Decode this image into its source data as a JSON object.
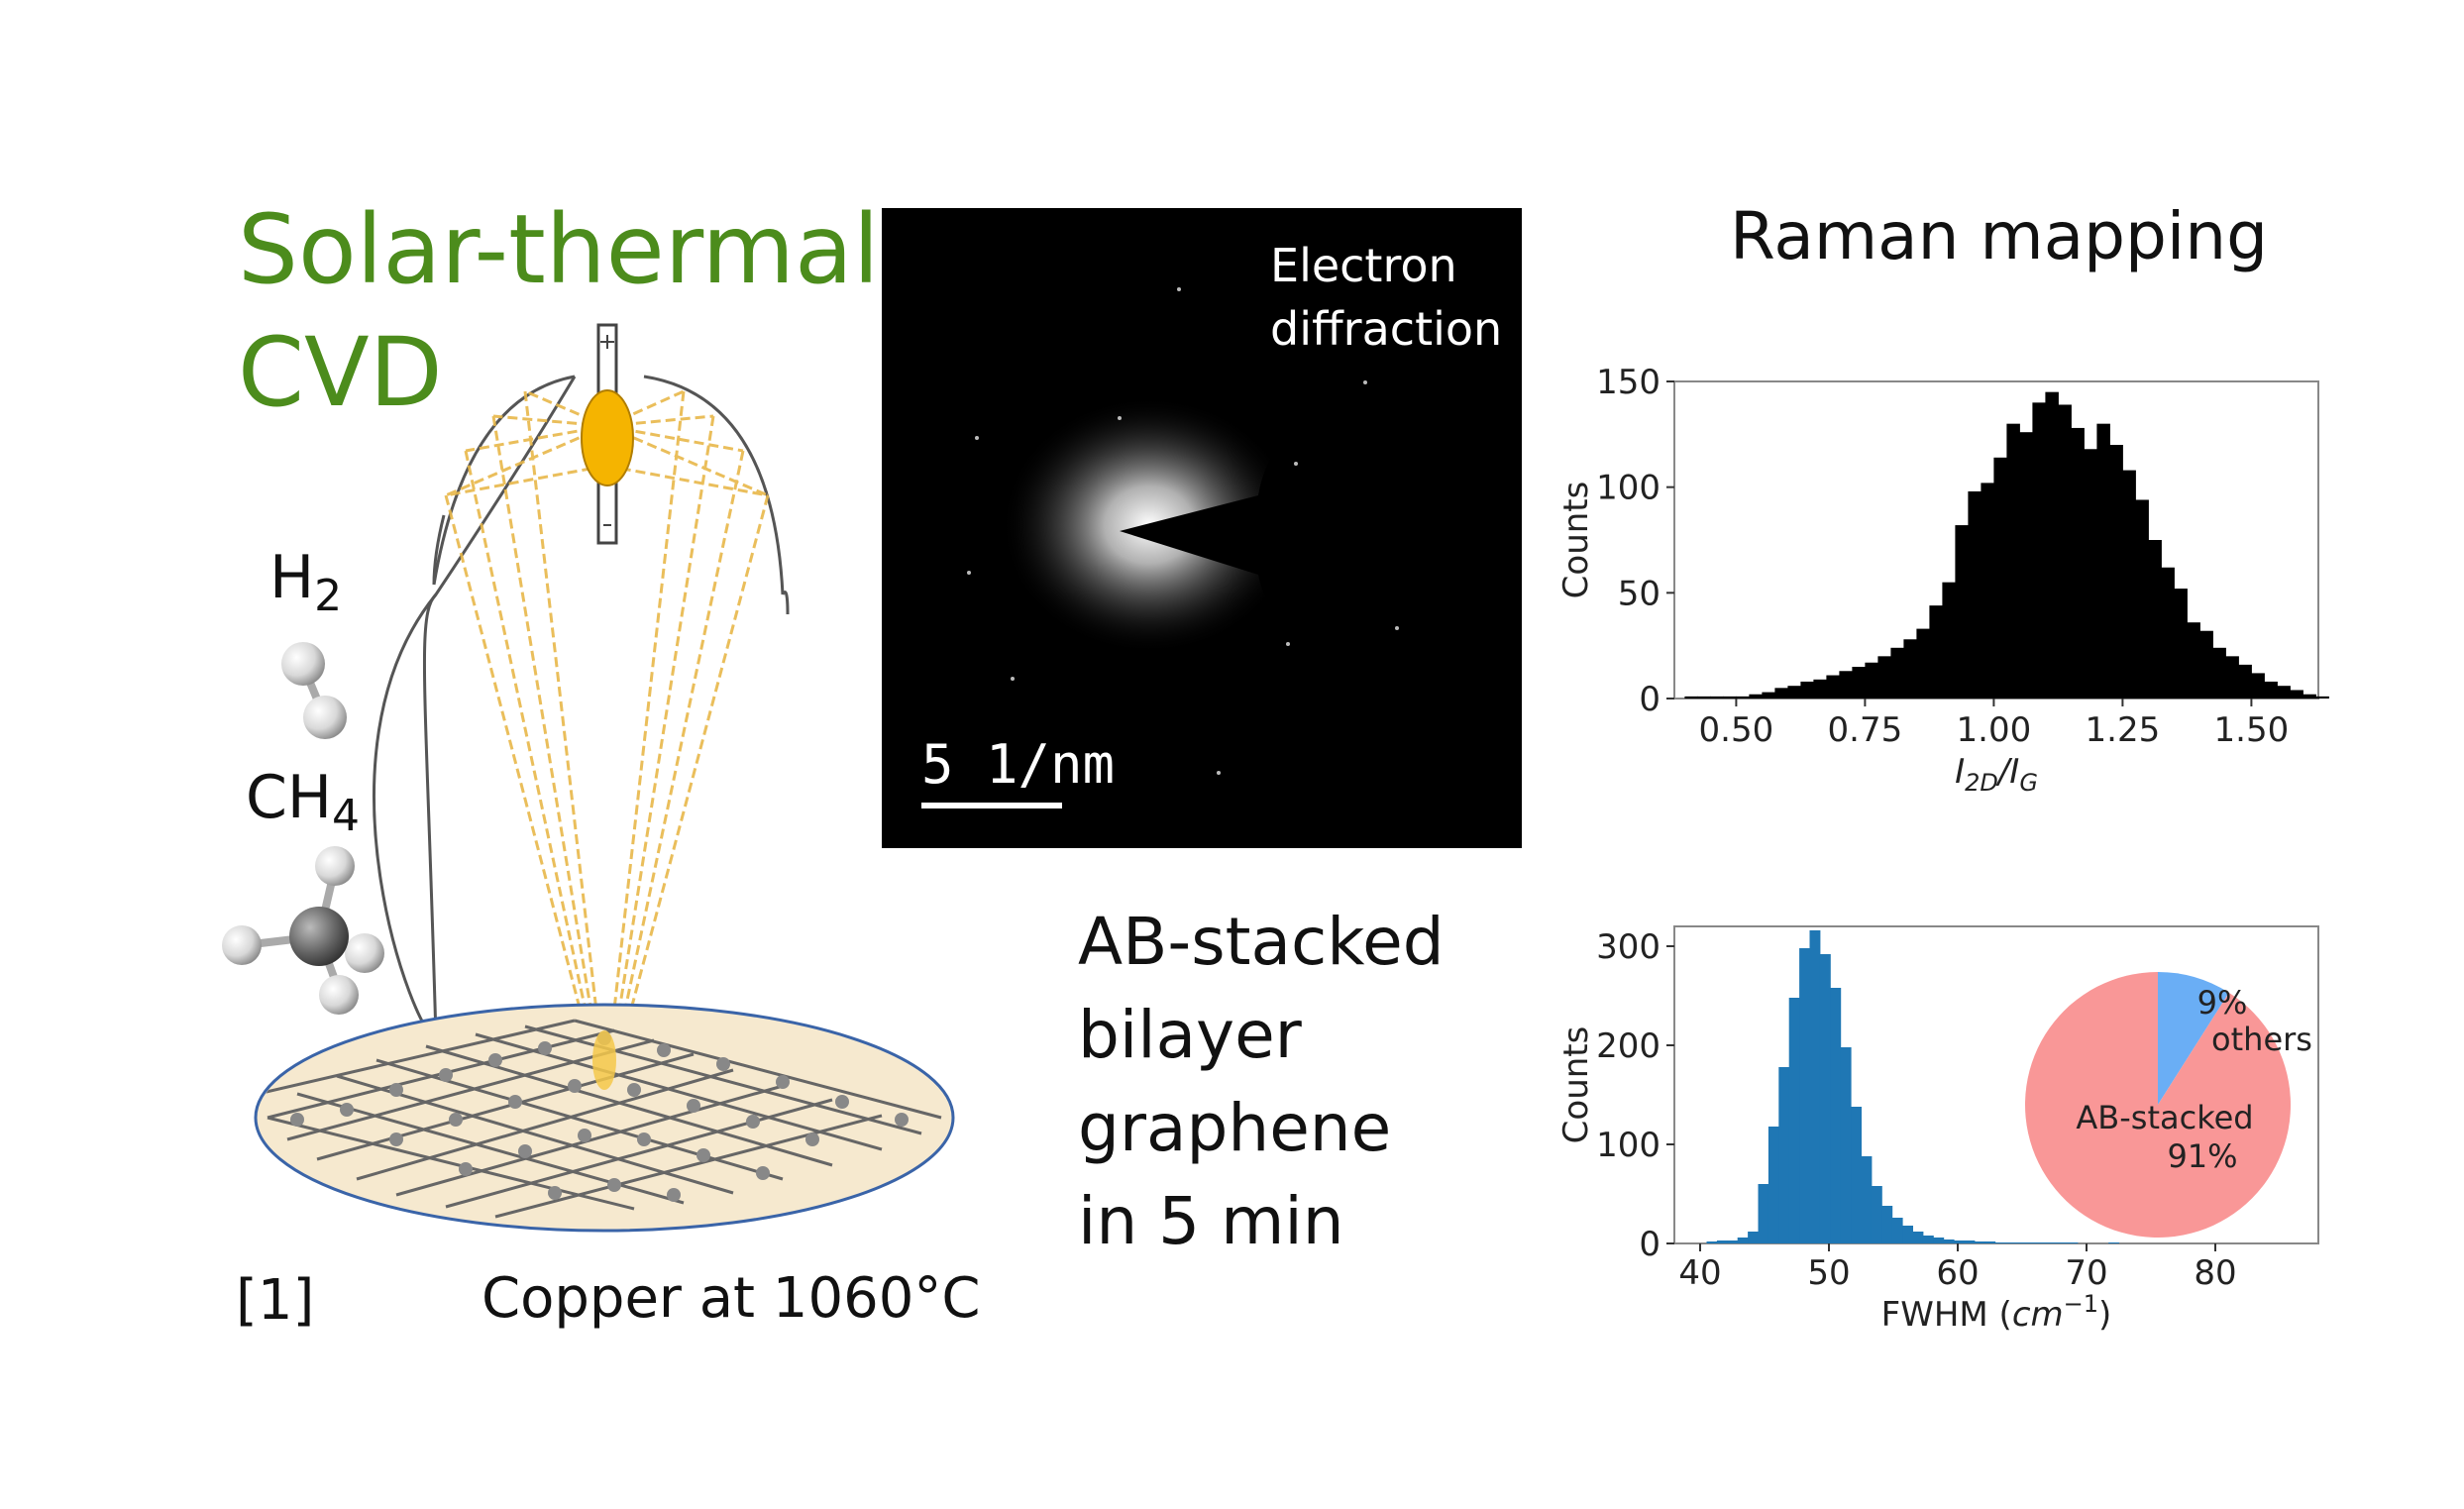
{
  "left_panel": {
    "title_line1": "Solar-thermal",
    "title_line2": "CVD",
    "gas1_main": "H",
    "gas1_sub": "2",
    "gas2_main": "CH",
    "gas2_sub": "4",
    "substrate_label": "Copper at 1060°C",
    "reference": "[1]",
    "colors": {
      "title": "#4c8c1c",
      "lamp": "#f5b400",
      "beam": "#e8b84a",
      "substrate": "#f6e9cf",
      "substrate_edge": "#3a64a8"
    }
  },
  "middle_panel": {
    "diffraction_label_line1": "Electron",
    "diffraction_label_line2": "diffraction",
    "scale_bar_label": "5 1/nm",
    "result_lines": [
      "AB-stacked",
      "bilayer",
      "graphene",
      "in 5 min"
    ]
  },
  "right_panel": {
    "heading": "Raman mapping",
    "chart_data": [
      {
        "type": "bar",
        "subtype": "histogram",
        "xlabel_main": "I",
        "xlabel_sub1": "2D",
        "xlabel_sep": "/I",
        "xlabel_sub2": "G",
        "ylabel": "Counts",
        "xlim": [
          0.38,
          1.63
        ],
        "ylim": [
          0,
          150
        ],
        "xticks": [
          "0.50",
          "0.75",
          "1.00",
          "1.25",
          "1.50"
        ],
        "yticks": [
          "0",
          "50",
          "100",
          "150"
        ],
        "bin_width": 0.025,
        "bins_start": 0.4,
        "values": [
          1,
          1,
          1,
          1,
          1,
          2,
          3,
          5,
          6,
          8,
          9,
          11,
          13,
          15,
          17,
          20,
          24,
          28,
          33,
          44,
          55,
          82,
          98,
          102,
          114,
          130,
          126,
          140,
          145,
          139,
          128,
          118,
          130,
          120,
          108,
          94,
          75,
          62,
          52,
          36,
          32,
          24,
          20,
          16,
          12,
          8,
          6,
          4,
          2,
          1
        ],
        "color": "#000000"
      },
      {
        "type": "bar",
        "subtype": "histogram",
        "xlabel_main": "FWHM (",
        "xlabel_unit": "cm",
        "xlabel_exp": "−1",
        "xlabel_end": ")",
        "ylabel": "Counts",
        "xlim": [
          38,
          88
        ],
        "ylim": [
          0,
          320
        ],
        "xticks": [
          "40",
          "50",
          "60",
          "70",
          "80"
        ],
        "yticks": [
          "0",
          "100",
          "200",
          "300"
        ],
        "bin_width": 0.8,
        "bins_start": 40.5,
        "values": [
          2,
          3,
          3,
          6,
          12,
          60,
          118,
          178,
          248,
          298,
          316,
          292,
          258,
          198,
          138,
          88,
          58,
          38,
          26,
          18,
          12,
          8,
          6,
          4,
          3,
          3,
          2,
          2,
          1,
          1,
          1,
          1,
          1,
          1,
          1,
          1,
          0,
          0,
          0,
          1
        ],
        "color": "#1f77b4"
      },
      {
        "type": "pie",
        "labels": [
          "others",
          "AB-stacked"
        ],
        "pct_labels": [
          "9%",
          "91%"
        ],
        "values": [
          9,
          91
        ],
        "colors": [
          "#6aaef5",
          "#f99797"
        ]
      }
    ]
  }
}
